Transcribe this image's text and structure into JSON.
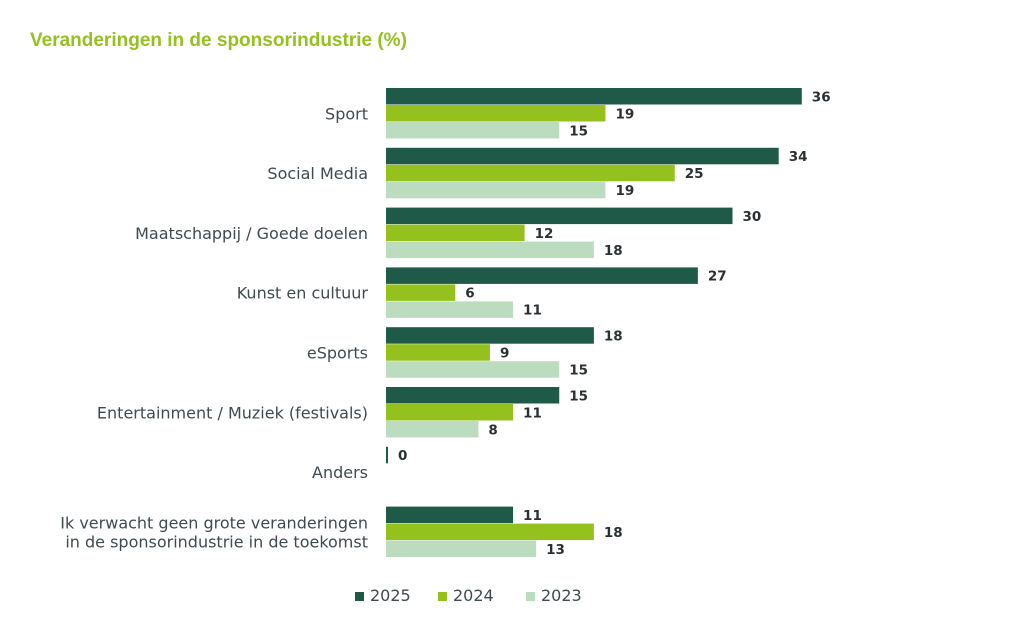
{
  "chart_data": {
    "type": "bar",
    "orientation": "horizontal",
    "title": "Veranderingen in de sponsorindustrie (%)",
    "categories": [
      [
        "Sport"
      ],
      [
        "Social Media"
      ],
      [
        "Maatschappij / Goede doelen"
      ],
      [
        "Kunst en cultuur"
      ],
      [
        "eSports"
      ],
      [
        "Entertainment  / Muziek (festivals)"
      ],
      [
        "Anders"
      ],
      [
        "Ik verwacht geen grote veranderingen",
        "in de sponsorindustrie in de toekomst"
      ]
    ],
    "series": [
      {
        "name": "2025",
        "color": "#1f5a48",
        "values": [
          36,
          34,
          30,
          27,
          18,
          15,
          0,
          11
        ]
      },
      {
        "name": "2024",
        "color": "#95c11f",
        "values": [
          19,
          25,
          12,
          6,
          9,
          11,
          null,
          18
        ]
      },
      {
        "name": "2023",
        "color": "#bcdcc0",
        "values": [
          15,
          19,
          18,
          11,
          15,
          8,
          null,
          13
        ]
      }
    ],
    "xlim": [
      0,
      37
    ],
    "grid": false,
    "legend_position": "bottom-center"
  }
}
